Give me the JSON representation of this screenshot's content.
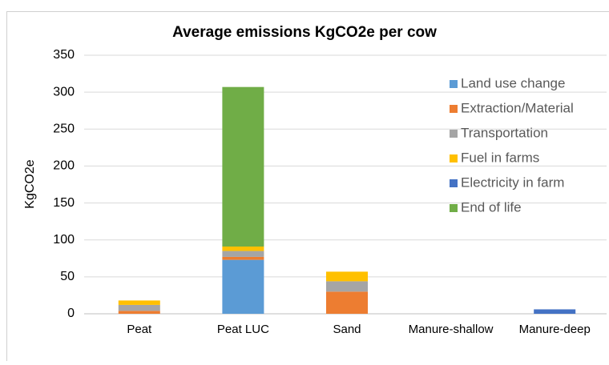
{
  "chart_data": {
    "type": "bar",
    "stacked": true,
    "title": "Average emissions KgCO2e per cow",
    "y_label": "KgCO2e",
    "categories": [
      "Peat",
      "Peat LUC",
      "Sand",
      "Manure-shallow",
      "Manure-deep"
    ],
    "series": [
      {
        "name": "Land use change",
        "color": "#5b9bd5",
        "values": [
          0,
          73,
          0,
          0,
          0
        ]
      },
      {
        "name": "Extraction/Material",
        "color": "#ed7d31",
        "values": [
          4,
          4,
          30,
          0,
          0
        ]
      },
      {
        "name": "Transportation",
        "color": "#a5a5a5",
        "values": [
          8,
          8,
          14,
          0,
          0
        ]
      },
      {
        "name": "Fuel in farms",
        "color": "#ffc000",
        "values": [
          6,
          6,
          13,
          0,
          0
        ]
      },
      {
        "name": "Electricity in farm",
        "color": "#4472c4",
        "values": [
          0,
          0,
          0,
          0,
          6
        ]
      },
      {
        "name": "End of life",
        "color": "#70ad47",
        "values": [
          0,
          216,
          0,
          0,
          0
        ]
      }
    ],
    "ylim": [
      0,
      350
    ],
    "yticks": [
      0,
      50,
      100,
      150,
      200,
      250,
      300,
      350
    ],
    "grid": true,
    "legend": "right"
  }
}
